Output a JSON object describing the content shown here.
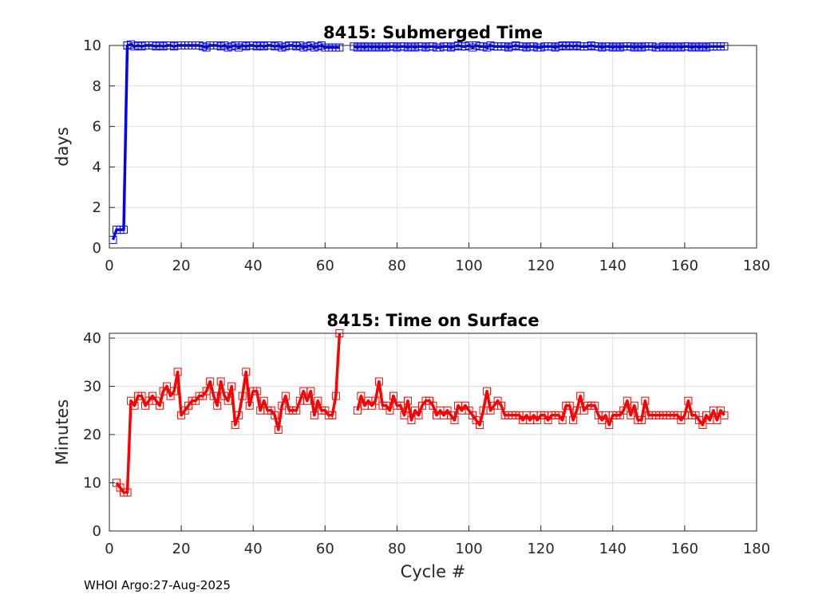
{
  "footer": "WHOI Argo:27-Aug-2025",
  "chart_data": [
    {
      "type": "line",
      "title": "8415: Submerged Time",
      "xlabel": "",
      "ylabel": "days",
      "xlim": [
        0,
        180
      ],
      "ylim": [
        0,
        10
      ],
      "xticks": [
        "0",
        "20",
        "40",
        "60",
        "80",
        "100",
        "120",
        "140",
        "160",
        "180"
      ],
      "yticks": [
        "0",
        "2",
        "4",
        "6",
        "8",
        "10"
      ],
      "grid": true,
      "color": "#0000ff",
      "marker": "square",
      "series": [
        {
          "segments": [
            {
              "x": [
                1,
                2,
                3,
                4,
                5,
                6,
                7,
                8,
                9,
                10,
                11,
                12,
                13,
                14,
                15,
                16,
                17,
                18,
                19,
                20,
                21,
                22,
                23,
                24,
                25,
                26,
                27,
                28,
                29,
                30,
                31,
                32,
                33,
                34,
                35,
                36,
                37,
                38,
                39,
                40,
                41,
                42,
                43,
                44,
                45,
                46,
                47,
                48,
                49,
                50,
                51,
                52,
                53,
                54,
                55,
                56,
                57,
                58,
                59,
                60,
                61,
                62,
                63,
                64
              ],
              "y": [
                0.4,
                0.9,
                0.9,
                0.9,
                10,
                10.05,
                9.95,
                10,
                9.95,
                10,
                10,
                10,
                9.95,
                10,
                9.95,
                10,
                10,
                9.95,
                10,
                10,
                10,
                10,
                10,
                10,
                10,
                9.95,
                9.9,
                10,
                10,
                10,
                9.95,
                10,
                9.9,
                9.95,
                10,
                9.9,
                10,
                9.95,
                10,
                10,
                9.95,
                10,
                9.95,
                10,
                10,
                9.95,
                10,
                9.9,
                9.95,
                10,
                10,
                9.95,
                10,
                9.9,
                9.95,
                10,
                9.9,
                9.95,
                10,
                9.9,
                9.9,
                9.9,
                9.9,
                9.9
              ]
            },
            {
              "x": [
                68,
                69,
                70,
                71,
                72,
                73,
                74,
                75,
                76,
                77,
                78,
                79,
                80,
                81,
                82,
                83,
                84,
                85,
                86,
                87,
                88,
                89,
                90,
                91,
                92,
                93,
                94,
                95,
                96,
                97,
                98,
                99,
                100,
                101,
                102,
                103,
                104,
                105,
                106,
                107,
                108,
                109,
                110,
                111,
                112,
                113,
                114,
                115,
                116,
                117,
                118,
                119,
                120,
                121,
                122,
                123,
                124,
                125,
                126,
                127,
                128,
                129,
                130,
                131,
                132,
                133,
                134,
                135,
                136,
                137,
                138,
                139,
                140,
                141,
                142,
                143,
                144,
                145,
                146,
                147,
                148,
                149,
                150,
                151,
                152,
                153,
                154,
                155,
                156,
                157,
                158,
                159,
                160,
                161,
                162,
                163,
                164,
                165,
                166,
                167,
                168,
                169,
                170,
                171
              ],
              "y": [
                9.95,
                9.9,
                9.95,
                9.9,
                9.95,
                9.9,
                9.95,
                9.9,
                9.95,
                9.9,
                9.95,
                9.95,
                9.9,
                9.95,
                9.95,
                9.9,
                9.95,
                9.9,
                9.95,
                9.95,
                9.9,
                9.95,
                9.95,
                9.9,
                9.9,
                9.95,
                9.95,
                9.9,
                9.95,
                10,
                9.95,
                9.95,
                10,
                9.9,
                10,
                9.95,
                9.95,
                9.9,
                10,
                9.95,
                9.95,
                9.95,
                9.95,
                9.9,
                9.95,
                10,
                9.95,
                9.95,
                9.9,
                9.95,
                9.95,
                9.9,
                9.9,
                9.95,
                9.95,
                9.95,
                9.9,
                9.95,
                10,
                9.95,
                10,
                9.95,
                10,
                9.95,
                9.95,
                9.95,
                10,
                9.95,
                9.95,
                9.9,
                9.95,
                9.95,
                9.9,
                9.95,
                9.9,
                9.95,
                9.95,
                9.95,
                9.9,
                9.95,
                9.9,
                9.95,
                9.95,
                9.95,
                9.9,
                9.9,
                9.95,
                9.9,
                9.95,
                9.9,
                9.95,
                9.9,
                9.95,
                9.95,
                9.9,
                9.95,
                9.9,
                9.95,
                9.9,
                9.95,
                9.95,
                9.95,
                9.95,
                9.95
              ]
            }
          ]
        }
      ]
    },
    {
      "type": "line",
      "title": "8415: Time on Surface",
      "xlabel": "Cycle #",
      "ylabel": "Minutes",
      "xlim": [
        0,
        180
      ],
      "ylim": [
        0,
        41
      ],
      "xticks": [
        "0",
        "20",
        "40",
        "60",
        "80",
        "100",
        "120",
        "140",
        "160",
        "180"
      ],
      "yticks": [
        "0",
        "10",
        "20",
        "30",
        "40"
      ],
      "grid": true,
      "color": "#ff0000",
      "marker": "square",
      "series": [
        {
          "segments": [
            {
              "x": [
                2,
                3,
                4,
                5,
                6,
                7,
                8,
                9,
                10,
                11,
                12,
                13,
                14,
                15,
                16,
                17,
                18,
                19,
                20,
                21,
                22,
                23,
                24,
                25,
                26,
                27,
                28,
                29,
                30,
                31,
                32,
                33,
                34,
                35,
                36,
                37,
                38,
                39,
                40,
                41,
                42,
                43,
                44,
                45,
                46,
                47,
                48,
                49,
                50,
                51,
                52,
                53,
                54,
                55,
                56,
                57,
                58,
                59,
                60,
                61,
                62,
                63,
                64
              ],
              "y": [
                10,
                9,
                8,
                8,
                27,
                26,
                28,
                28,
                26,
                27,
                28,
                27,
                26,
                29,
                30,
                28,
                29,
                33,
                24,
                25,
                26,
                27,
                27,
                28,
                28,
                29,
                31,
                28,
                26,
                31,
                28,
                27,
                30,
                22,
                24,
                28,
                33,
                26,
                29,
                29,
                25,
                27,
                25,
                25,
                24,
                21,
                26,
                28,
                25,
                25,
                25,
                27,
                29,
                27,
                29,
                24,
                27,
                25,
                25,
                24,
                24,
                28,
                41
              ]
            },
            {
              "x": [
                69,
                70,
                71,
                72,
                73,
                74,
                75,
                76,
                77,
                78,
                79,
                80,
                81,
                82,
                83,
                84,
                85,
                86,
                87,
                88,
                89,
                90,
                91,
                92,
                93,
                94,
                95,
                96,
                97,
                98,
                99,
                100,
                101,
                102,
                103,
                104,
                105,
                106,
                107,
                108,
                109,
                110,
                111,
                112,
                113,
                114,
                115,
                116,
                117,
                118,
                119,
                120,
                121,
                122,
                123,
                124,
                125,
                126,
                127,
                128,
                129,
                130,
                131,
                132,
                133,
                134,
                135,
                136,
                137,
                138,
                139,
                140,
                141,
                142,
                143,
                144,
                145,
                146,
                147,
                148,
                149,
                150,
                151,
                152,
                153,
                154,
                155,
                156,
                157,
                158,
                159,
                160,
                161,
                162,
                163,
                164,
                165,
                166,
                167,
                168,
                169,
                170,
                171
              ],
              "y": [
                25,
                28,
                26,
                27,
                26,
                27,
                31,
                26,
                26,
                25,
                28,
                26,
                26,
                24,
                27,
                23,
                25,
                24,
                26,
                27,
                27,
                26,
                24,
                25,
                24,
                25,
                24,
                23,
                26,
                25,
                26,
                25,
                24,
                23,
                22,
                25,
                29,
                25,
                26,
                27,
                26,
                24,
                24,
                24,
                24,
                24,
                23,
                24,
                23,
                24,
                23,
                24,
                24,
                23,
                24,
                24,
                24,
                23,
                26,
                26,
                23,
                25,
                28,
                25,
                26,
                26,
                26,
                24,
                23,
                24,
                22,
                24,
                24,
                24,
                25,
                27,
                24,
                26,
                23,
                23,
                27,
                24,
                24,
                24,
                24,
                24,
                24,
                24,
                24,
                24,
                23,
                24,
                27,
                24,
                24,
                23,
                22,
                24,
                23,
                25,
                23,
                25,
                24
              ]
            }
          ]
        }
      ]
    }
  ]
}
